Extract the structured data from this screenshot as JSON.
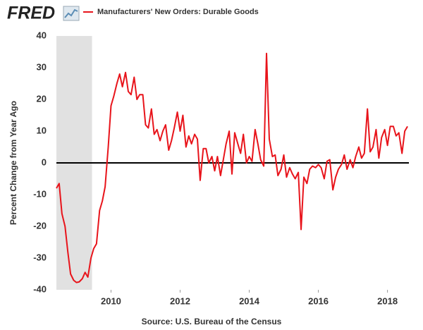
{
  "logo": "FRED",
  "chart_data": {
    "type": "line",
    "y_label": "Percent Change from Year Ago",
    "source": "Source: U.S. Bureau of the Census",
    "x": [
      2008.42,
      2008.5,
      2008.58,
      2008.67,
      2008.75,
      2008.83,
      2008.92,
      2009,
      2009.08,
      2009.17,
      2009.25,
      2009.33,
      2009.42,
      2009.5,
      2009.58,
      2009.67,
      2009.75,
      2009.83,
      2009.92,
      2010,
      2010.08,
      2010.17,
      2010.25,
      2010.33,
      2010.42,
      2010.5,
      2010.58,
      2010.67,
      2010.75,
      2010.83,
      2010.92,
      2011,
      2011.08,
      2011.17,
      2011.25,
      2011.33,
      2011.42,
      2011.5,
      2011.58,
      2011.67,
      2011.75,
      2011.83,
      2011.92,
      2012,
      2012.08,
      2012.17,
      2012.25,
      2012.33,
      2012.42,
      2012.5,
      2012.58,
      2012.67,
      2012.75,
      2012.83,
      2012.92,
      2013,
      2013.08,
      2013.17,
      2013.25,
      2013.33,
      2013.42,
      2013.5,
      2013.58,
      2013.67,
      2013.75,
      2013.83,
      2013.92,
      2014,
      2014.08,
      2014.17,
      2014.25,
      2014.33,
      2014.42,
      2014.5,
      2014.58,
      2014.67,
      2014.75,
      2014.83,
      2014.92,
      2015,
      2015.08,
      2015.17,
      2015.25,
      2015.33,
      2015.42,
      2015.5,
      2015.58,
      2015.67,
      2015.75,
      2015.83,
      2015.92,
      2016,
      2016.08,
      2016.17,
      2016.25,
      2016.33,
      2016.42,
      2016.5,
      2016.58,
      2016.67,
      2016.75,
      2016.83,
      2016.92,
      2017,
      2017.08,
      2017.17,
      2017.25,
      2017.33,
      2017.42,
      2017.5,
      2017.58,
      2017.67,
      2017.75,
      2017.83,
      2017.92,
      2018,
      2018.08,
      2018.17,
      2018.25,
      2018.33,
      2018.42,
      2018.5,
      2018.58
    ],
    "series": [
      {
        "name": "Manufacturers' New Orders: Durable Goods",
        "color": "#e8141b",
        "values": [
          -8,
          -6.5,
          -16,
          -20,
          -28,
          -35,
          -37,
          -37.7,
          -37.5,
          -36.5,
          -34.5,
          -36,
          -30,
          -27,
          -25.5,
          -15,
          -12,
          -7.5,
          5,
          18,
          21,
          25,
          28,
          24,
          28.5,
          22.5,
          21.5,
          27,
          20,
          21.5,
          21.5,
          12,
          11,
          17,
          9,
          10.5,
          7,
          10,
          12,
          4,
          7,
          11,
          16,
          10,
          15,
          5,
          8.5,
          6,
          9,
          7.5,
          -5.5,
          4.5,
          4.5,
          0,
          2,
          -2.5,
          2,
          -4,
          1,
          6,
          10,
          -3.5,
          9.5,
          6,
          3,
          9,
          0,
          2,
          0.5,
          10.5,
          6,
          1,
          -1,
          34.5,
          7.5,
          2,
          2.5,
          -4,
          -2,
          2.5,
          -4.5,
          -1.5,
          -3.5,
          -5,
          -3,
          -21,
          -4.5,
          -6.5,
          -2,
          -1,
          -1.5,
          -0.5,
          -1.5,
          -5,
          0.5,
          1,
          -8.5,
          -4.5,
          -2,
          -0.5,
          2.5,
          -2,
          1,
          -1.5,
          2,
          5,
          1.5,
          3,
          17,
          3.5,
          5,
          10.5,
          1.5,
          8,
          10.5,
          5.5,
          11.5,
          11.5,
          8.5,
          9.5,
          3,
          10,
          11.5
        ]
      }
    ],
    "xlim": [
      2008.42,
      2018.62
    ],
    "xticks": [
      2010,
      2012,
      2014,
      2016,
      2018
    ],
    "ylim": [
      -40,
      40
    ],
    "yticks": [
      -40,
      -30,
      -20,
      -10,
      0,
      10,
      20,
      30,
      40
    ],
    "zero_line": true,
    "recession": [
      2008.42,
      2009.45
    ],
    "recession_color": "#e1e1e1"
  }
}
